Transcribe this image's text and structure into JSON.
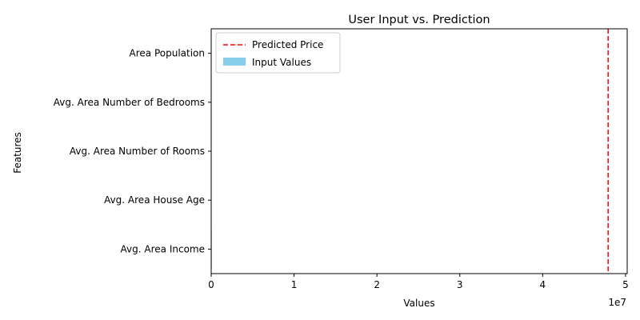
{
  "chart_data": {
    "type": "bar",
    "orientation": "horizontal",
    "title": "User Input vs. Prediction",
    "xlabel": "Values",
    "ylabel": "Features",
    "x_scale_label": "1e7",
    "xlim": [
      0,
      50200000.0
    ],
    "x_ticks": [
      0,
      10000000,
      20000000,
      30000000,
      40000000,
      50000000
    ],
    "x_tick_labels": [
      "0",
      "1",
      "2",
      "3",
      "4",
      "5"
    ],
    "categories": [
      "Avg. Area Income",
      "Avg. Area House Age",
      "Avg. Area Number of Rooms",
      "Avg. Area Number of Bedrooms",
      "Area Population"
    ],
    "series": [
      {
        "name": "Input Values",
        "color": "#87ceeb",
        "values": [
          70000,
          6,
          7,
          4,
          35000
        ]
      }
    ],
    "reference_line": {
      "name": "Predicted Price",
      "value": 47900000,
      "color": "#ff0000",
      "style": "dashed"
    },
    "grid": false,
    "legend_position": "upper-left"
  }
}
